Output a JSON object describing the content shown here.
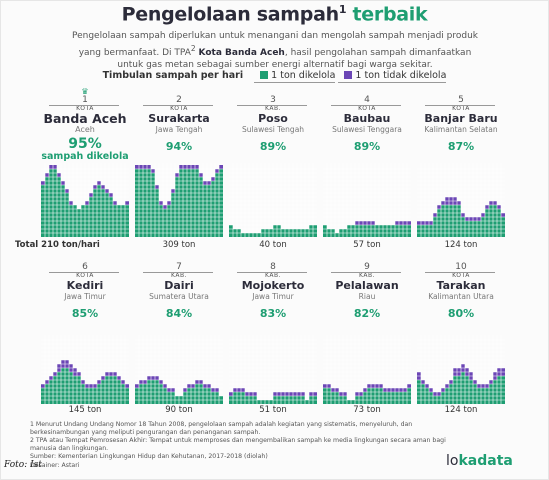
{
  "header": {
    "title_main": "Pengelolaan sampah",
    "title_sup": "1",
    "title_highlight": "terbaik",
    "intro_part1": "Pengelolaan sampah diperlukan untuk menangani dan mengolah sampah menjadi produk yang bermanfaat. Di TPA",
    "intro_sup": "2",
    "intro_city": "Kota Banda Aceh",
    "intro_part2": ", hasil pengolahan sampah dimanfaatkan untuk gas metan sebagai sumber energi alternatif bagi warga sekitar."
  },
  "legend": {
    "label": "Timbulan sampah per hari",
    "managed": "1 ton dikelola",
    "unmanaged": "1 ton tidak dikelola"
  },
  "colors": {
    "managed": "#1e9e72",
    "unmanaged": "#6b46b5",
    "grid": "#ffffff",
    "title_highlight": "#1e9e72"
  },
  "chart_data": {
    "type": "bar",
    "title": "Pengelolaan sampah terbaik",
    "unit": "ton",
    "series_names": [
      "1 ton dikelola",
      "1 ton tidak dikelola"
    ],
    "first_panel_note": "sampah dikelola",
    "first_panel_total_prefix": "Total",
    "first_panel_total_suffix": "ton/hari",
    "cities": [
      {
        "rank": "1",
        "admin": "KOTA",
        "name": "Banda Aceh",
        "province": "Aceh",
        "pct": "95%",
        "pct_value": 95,
        "total_tons": 210,
        "total_label": "210"
      },
      {
        "rank": "2",
        "admin": "KOTA",
        "name": "Surakarta",
        "province": "Jawa Tengah",
        "pct": "94%",
        "pct_value": 94,
        "total_tons": 309,
        "total_label": "309 ton"
      },
      {
        "rank": "3",
        "admin": "KAB.",
        "name": "Poso",
        "province": "Sulawesi Tengah",
        "pct": "89%",
        "pct_value": 89,
        "total_tons": 40,
        "total_label": "40 ton"
      },
      {
        "rank": "4",
        "admin": "KOTA",
        "name": "Baubau",
        "province": "Sulawesi Tenggara",
        "pct": "89%",
        "pct_value": 89,
        "total_tons": 57,
        "total_label": "57 ton"
      },
      {
        "rank": "5",
        "admin": "KOTA",
        "name": "Banjar Baru",
        "province": "Kalimantan Selatan",
        "pct": "87%",
        "pct_value": 87,
        "total_tons": 124,
        "total_label": "124 ton"
      },
      {
        "rank": "6",
        "admin": "KOTA",
        "name": "Kediri",
        "province": "Jawa Timur",
        "pct": "85%",
        "pct_value": 85,
        "total_tons": 145,
        "total_label": "145 ton"
      },
      {
        "rank": "7",
        "admin": "KAB.",
        "name": "Dairi",
        "province": "Sumatera Utara",
        "pct": "84%",
        "pct_value": 84,
        "total_tons": 90,
        "total_label": "90 ton"
      },
      {
        "rank": "8",
        "admin": "KAB.",
        "name": "Mojokerto",
        "province": "Jawa Timur",
        "pct": "83%",
        "pct_value": 83,
        "total_tons": 51,
        "total_label": "51 ton"
      },
      {
        "rank": "9",
        "admin": "KAB.",
        "name": "Pelalawan",
        "province": "Riau",
        "pct": "82%",
        "pct_value": 82,
        "total_tons": 73,
        "total_label": "73 ton"
      },
      {
        "rank": "10",
        "admin": "KOTA",
        "name": "Tarakan",
        "province": "Kalimantan Utara",
        "pct": "80%",
        "pct_value": 80,
        "total_tons": 124,
        "total_label": "124 ton"
      }
    ]
  },
  "footnotes": [
    "1 Menurut Undang Undang Nomor 18 Tahun 2008, pengelolaan sampah adalah kegiatan yang sistematis, menyeluruh, dan berkesinambungan yang meliputi pengurangan dan penanganan sampah.",
    "2 TPA atau Tempat Pemrosesan Akhir: Tempat untuk memproses dan mengembalikan sampah ke media lingkungan secara aman bagi manusia dan lingkungan.",
    "Sumber: Kementerian Lingkungan Hidup dan Kehutanan, 2017-2018 (diolah)",
    "Desainer: Astari"
  ],
  "photo_credit": "Foto: Ist",
  "logo": {
    "part1": "lo",
    "part2": "kadata"
  }
}
